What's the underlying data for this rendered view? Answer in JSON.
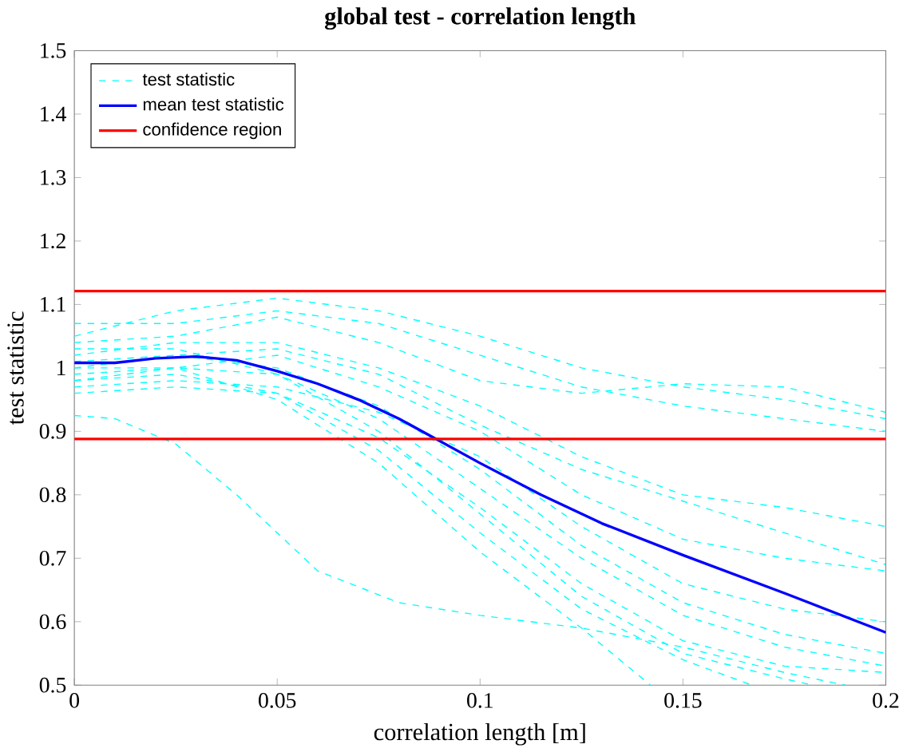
{
  "chart_data": {
    "type": "line",
    "title": "global test - correlation length",
    "xlabel": "correlation length [m]",
    "ylabel": "test statistic",
    "xlim": [
      0,
      0.2
    ],
    "ylim": [
      0.5,
      1.5
    ],
    "xticks": [
      0,
      0.05,
      0.1,
      0.15,
      0.2
    ],
    "yticks": [
      0.5,
      0.6,
      0.7,
      0.8,
      0.9,
      1,
      1.1,
      1.2,
      1.3,
      1.4,
      1.5
    ],
    "grid": false,
    "legend": "top left",
    "series": [
      {
        "name": "test statistic",
        "color": "#00ffff",
        "line_style": "dashed",
        "x": [
          0,
          0.025,
          0.05,
          0.075,
          0.1,
          0.125,
          0.15,
          0.175,
          0.2
        ],
        "values": [
          1.05,
          1.09,
          1.11,
          1.09,
          1.05,
          1.0,
          0.97,
          0.95,
          0.92
        ]
      },
      {
        "color": "#00ffff",
        "line_style": "dashed",
        "x": [
          0,
          0.025,
          0.05,
          0.075,
          0.1,
          0.125,
          0.15,
          0.175,
          0.2
        ],
        "values": [
          1.07,
          1.07,
          1.09,
          1.07,
          1.02,
          0.97,
          0.94,
          0.92,
          0.9
        ]
      },
      {
        "color": "#00ffff",
        "line_style": "dashed",
        "x": [
          0,
          0.025,
          0.05,
          0.075,
          0.1,
          0.125,
          0.15,
          0.175,
          0.2
        ],
        "values": [
          1.04,
          1.05,
          1.08,
          1.04,
          0.98,
          0.96,
          0.975,
          0.97,
          0.93
        ]
      },
      {
        "color": "#00ffff",
        "line_style": "dashed",
        "x": [
          0,
          0.025,
          0.05,
          0.075,
          0.1,
          0.125,
          0.15,
          0.175,
          0.2
        ],
        "values": [
          1.02,
          1.04,
          1.04,
          1.0,
          0.94,
          0.86,
          0.8,
          0.78,
          0.75
        ]
      },
      {
        "color": "#00ffff",
        "line_style": "dashed",
        "x": [
          0,
          0.025,
          0.05,
          0.075,
          0.1,
          0.125,
          0.15,
          0.175,
          0.2
        ],
        "values": [
          1.0,
          1.02,
          1.03,
          0.99,
          0.91,
          0.84,
          0.79,
          0.74,
          0.69
        ]
      },
      {
        "color": "#00ffff",
        "line_style": "dashed",
        "x": [
          0,
          0.025,
          0.05,
          0.075,
          0.1,
          0.125,
          0.15,
          0.175,
          0.2
        ],
        "values": [
          0.98,
          1.0,
          1.02,
          0.97,
          0.9,
          0.8,
          0.73,
          0.7,
          0.68
        ]
      },
      {
        "color": "#00ffff",
        "line_style": "dashed",
        "x": [
          0,
          0.025,
          0.05,
          0.075,
          0.1,
          0.125,
          0.15,
          0.175,
          0.2
        ],
        "values": [
          0.97,
          0.98,
          0.97,
          0.93,
          0.86,
          0.75,
          0.66,
          0.62,
          0.6
        ]
      },
      {
        "color": "#00ffff",
        "line_style": "dashed",
        "x": [
          0,
          0.025,
          0.05,
          0.075,
          0.1,
          0.125,
          0.15,
          0.175,
          0.2
        ],
        "values": [
          1.01,
          1.02,
          1.0,
          0.94,
          0.84,
          0.72,
          0.63,
          0.58,
          0.55
        ]
      },
      {
        "color": "#00ffff",
        "line_style": "dashed",
        "x": [
          0,
          0.025,
          0.05,
          0.075,
          0.1,
          0.125,
          0.15,
          0.175,
          0.2
        ],
        "values": [
          0.99,
          1.0,
          0.99,
          0.92,
          0.81,
          0.7,
          0.61,
          0.56,
          0.53
        ]
      },
      {
        "color": "#00ffff",
        "line_style": "dashed",
        "x": [
          0,
          0.025,
          0.05,
          0.075,
          0.1,
          0.125,
          0.15,
          0.175,
          0.2
        ],
        "values": [
          0.96,
          0.97,
          0.96,
          0.89,
          0.78,
          0.66,
          0.57,
          0.53,
          0.52
        ]
      },
      {
        "color": "#00ffff",
        "line_style": "dashed",
        "x": [
          0,
          0.025,
          0.05,
          0.075,
          0.1,
          0.125,
          0.15,
          0.175,
          0.182
        ],
        "values": [
          1.03,
          1.03,
          0.99,
          0.9,
          0.77,
          0.64,
          0.55,
          0.51,
          0.5
        ]
      },
      {
        "color": "#00ffff",
        "line_style": "dashed",
        "x": [
          0,
          0.025,
          0.05,
          0.075,
          0.1,
          0.125,
          0.15,
          0.167
        ],
        "values": [
          0.98,
          0.99,
          0.96,
          0.87,
          0.74,
          0.62,
          0.54,
          0.5
        ]
      },
      {
        "color": "#00ffff",
        "line_style": "dashed",
        "x": [
          0,
          0.025,
          0.05,
          0.075,
          0.1,
          0.125,
          0.142
        ],
        "values": [
          1.0,
          1.0,
          0.95,
          0.85,
          0.71,
          0.59,
          0.5
        ]
      },
      {
        "color": "#00ffff",
        "line_style": "dashed",
        "x": [
          0,
          0.01,
          0.025,
          0.04,
          0.06,
          0.08,
          0.1,
          0.125,
          0.15,
          0.175,
          0.19
        ],
        "values": [
          0.925,
          0.92,
          0.88,
          0.8,
          0.68,
          0.63,
          0.61,
          0.59,
          0.56,
          0.52,
          0.5
        ]
      },
      {
        "name": "mean test statistic",
        "color": "#0000ff",
        "line_style": "solid",
        "x": [
          0,
          0.01,
          0.02,
          0.03,
          0.04,
          0.05,
          0.06,
          0.07,
          0.08,
          0.09,
          0.1,
          0.115,
          0.13,
          0.15,
          0.175,
          0.2
        ],
        "values": [
          1.008,
          1.008,
          1.015,
          1.018,
          1.012,
          0.995,
          0.975,
          0.95,
          0.92,
          0.885,
          0.85,
          0.8,
          0.755,
          0.705,
          0.645,
          0.583
        ]
      }
    ],
    "ref_lines": [
      {
        "axis": "y",
        "value": 1.121,
        "label": "confidence region",
        "color": "#ff0000"
      },
      {
        "axis": "y",
        "value": 0.888,
        "color": "#ff0000"
      }
    ]
  }
}
